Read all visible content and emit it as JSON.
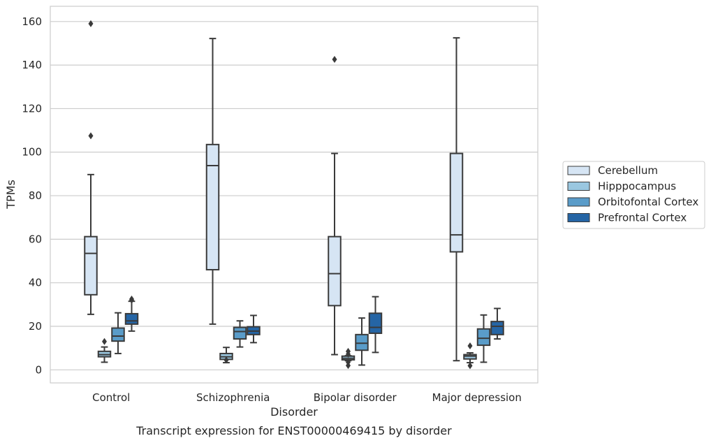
{
  "caption": "Transcript expression for ENST00000469415 by disorder",
  "chart_data": {
    "type": "box",
    "title": "",
    "xlabel": "Disorder",
    "ylabel": "TPMs",
    "ylim": [
      -6,
      167
    ],
    "yticks": [
      0,
      20,
      40,
      60,
      80,
      100,
      120,
      140,
      160
    ],
    "grid": true,
    "legend_position": "right",
    "categories": [
      "Control",
      "Schizophrenia",
      "Bipolar disorder",
      "Major depression"
    ],
    "series": [
      {
        "name": "Cerebellum",
        "color": "#d6e5f4",
        "boxes": [
          {
            "whislo": 25.5,
            "q1": 34.5,
            "med": 53.5,
            "q3": 61.2,
            "whishi": 89.7,
            "fliers": [
              107.5,
              159
            ]
          },
          {
            "whislo": 21,
            "q1": 46,
            "med": 93.8,
            "q3": 103.5,
            "whishi": 152.2,
            "fliers": []
          },
          {
            "whislo": 7,
            "q1": 29.5,
            "med": 44.2,
            "q3": 61.2,
            "whishi": 99.4,
            "fliers": [
              142.6
            ]
          },
          {
            "whislo": 4.2,
            "q1": 54.2,
            "med": 62,
            "q3": 99.4,
            "whishi": 152.5,
            "fliers": []
          }
        ]
      },
      {
        "name": "Hipppocampus",
        "color": "#9ac7e0",
        "boxes": [
          {
            "whislo": 3.5,
            "q1": 6,
            "med": 7,
            "q3": 8.5,
            "whishi": 10.5,
            "fliers": [
              13
            ]
          },
          {
            "whislo": 3.3,
            "q1": 4.8,
            "med": 6,
            "q3": 7.5,
            "whishi": 10.3,
            "fliers": [
              4.5
            ]
          },
          {
            "whislo": 4.2,
            "q1": 4.6,
            "med": 5.3,
            "q3": 6.3,
            "whishi": 6.5,
            "fliers": [
              2,
              3.5,
              7.2,
              8.5
            ]
          },
          {
            "whislo": 3.3,
            "q1": 5,
            "med": 6.3,
            "q3": 7,
            "whishi": 7.8,
            "fliers": [
              1.9,
              11
            ]
          }
        ]
      },
      {
        "name": "Orbitofontal Cortex",
        "color": "#5a9cc9",
        "boxes": [
          {
            "whislo": 7.5,
            "q1": 13.2,
            "med": 15.5,
            "q3": 19.2,
            "whishi": 26.2,
            "fliers": []
          },
          {
            "whislo": 10.5,
            "q1": 14.2,
            "med": 17.6,
            "q3": 19.5,
            "whishi": 22.5,
            "fliers": []
          },
          {
            "whislo": 2.2,
            "q1": 9,
            "med": 12.2,
            "q3": 16.2,
            "whishi": 23.8,
            "fliers": []
          },
          {
            "whislo": 3.5,
            "q1": 11.3,
            "med": 14.5,
            "q3": 18.8,
            "whishi": 25.2,
            "fliers": []
          }
        ]
      },
      {
        "name": "Prefrontal Cortex",
        "color": "#2565a5",
        "boxes": [
          {
            "whislo": 17.8,
            "q1": 21,
            "med": 22.5,
            "q3": 25.8,
            "whishi": 31.5,
            "fliers": [
              32,
              32.5
            ]
          },
          {
            "whislo": 12.5,
            "q1": 16.2,
            "med": 17.8,
            "q3": 19.8,
            "whishi": 25,
            "fliers": []
          },
          {
            "whislo": 8,
            "q1": 16.8,
            "med": 19.5,
            "q3": 26,
            "whishi": 33.6,
            "fliers": []
          },
          {
            "whislo": 14.2,
            "q1": 16.2,
            "med": 20,
            "q3": 22.2,
            "whishi": 28.2,
            "fliers": []
          }
        ]
      }
    ]
  }
}
